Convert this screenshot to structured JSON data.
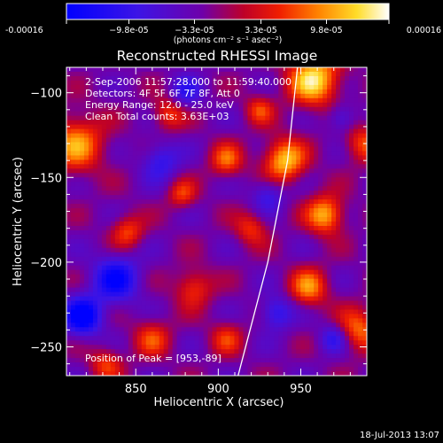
{
  "chart_data": {
    "type": "heatmap",
    "title": "Reconstructed RHESSI Image",
    "xlabel": "Heliocentric X (arcsec)",
    "ylabel": "Heliocentric Y (arcsec)",
    "xlim": [
      808,
      990
    ],
    "ylim": [
      -267,
      -85
    ],
    "xticks": [
      850,
      900,
      950
    ],
    "yticks": [
      -100,
      -150,
      -200,
      -250
    ],
    "colorbar": {
      "min": -0.00016,
      "max": 0.00016,
      "tick_values": [
        -0.00016,
        -9.8e-05,
        -3.3e-05,
        3.3e-05,
        9.8e-05,
        0.00016
      ],
      "tick_labels": [
        "-0.00016",
        "−9.8e-05",
        "−3.3e-05",
        "3.3e-05",
        "9.8e-05",
        "0.00016"
      ],
      "unit_label": "(photons cm⁻² s⁻¹ asec⁻²)"
    },
    "annotations": [
      "2-Sep-2006 11:57:28.000 to 11:59:40.000",
      "Detectors: 4F 5F 6F 7F 8F, Att 0",
      "Energy Range: 12.0 - 25.0 keV",
      "Clean    Total counts: 3.63E+03"
    ],
    "peak_label": "Position of Peak = [953,-89]",
    "peak": [
      953,
      -89
    ],
    "limb_curve": [
      [
        912,
        -267
      ],
      [
        930,
        -200
      ],
      [
        942,
        -140
      ],
      [
        948,
        -85
      ]
    ],
    "sources": [
      {
        "x": 958,
        "y": -92,
        "a": 1.0,
        "s": 11
      },
      {
        "x": 940,
        "y": -140,
        "a": 0.9,
        "s": 9
      },
      {
        "x": 965,
        "y": -172,
        "a": 0.85,
        "s": 8
      },
      {
        "x": 814,
        "y": -130,
        "a": 0.75,
        "s": 12
      },
      {
        "x": 905,
        "y": -140,
        "a": 0.6,
        "s": 7
      },
      {
        "x": 870,
        "y": -112,
        "a": 0.55,
        "s": 7
      },
      {
        "x": 878,
        "y": -160,
        "a": 0.5,
        "s": 6
      },
      {
        "x": 845,
        "y": -182,
        "a": 0.55,
        "s": 7
      },
      {
        "x": 920,
        "y": -180,
        "a": 0.5,
        "s": 7
      },
      {
        "x": 955,
        "y": -215,
        "a": 0.7,
        "s": 8
      },
      {
        "x": 985,
        "y": -240,
        "a": 0.65,
        "s": 9
      },
      {
        "x": 885,
        "y": -215,
        "a": 0.55,
        "s": 8
      },
      {
        "x": 905,
        "y": -245,
        "a": 0.45,
        "s": 7
      },
      {
        "x": 860,
        "y": -245,
        "a": 0.5,
        "s": 8
      },
      {
        "x": 988,
        "y": -130,
        "a": 0.55,
        "s": 8
      },
      {
        "x": 832,
        "y": -260,
        "a": 0.5,
        "s": 7
      },
      {
        "x": 925,
        "y": -110,
        "a": 0.5,
        "s": 6
      },
      {
        "x": 838,
        "y": -210,
        "a": -0.75,
        "s": 10
      },
      {
        "x": 818,
        "y": -232,
        "a": -0.95,
        "s": 8
      },
      {
        "x": 880,
        "y": -100,
        "a": -0.45,
        "s": 7
      },
      {
        "x": 865,
        "y": -140,
        "a": -0.5,
        "s": 8
      },
      {
        "x": 930,
        "y": -160,
        "a": -0.45,
        "s": 7
      },
      {
        "x": 970,
        "y": -245,
        "a": -0.5,
        "s": 6
      },
      {
        "x": 935,
        "y": -230,
        "a": -0.55,
        "s": 7
      },
      {
        "x": 975,
        "y": -115,
        "a": -0.45,
        "s": 6
      }
    ]
  },
  "footer": {
    "timestamp": "18-Jul-2013 13:07"
  }
}
